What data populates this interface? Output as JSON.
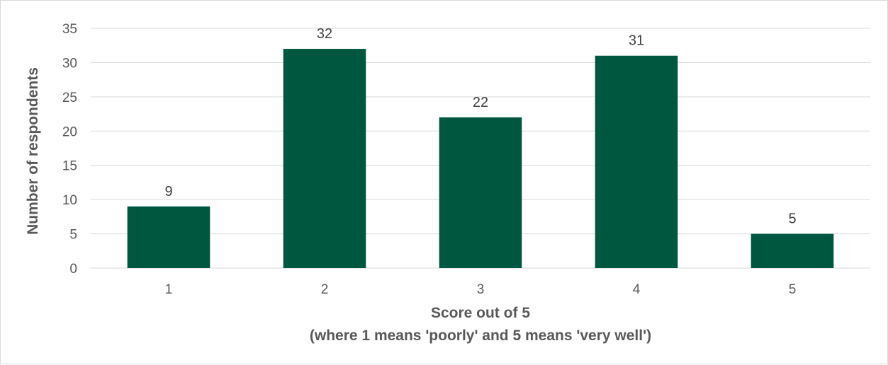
{
  "chart_data": {
    "type": "bar",
    "categories": [
      "1",
      "2",
      "3",
      "4",
      "5"
    ],
    "values": [
      9,
      32,
      22,
      31,
      5
    ],
    "xlabel_lines": [
      "Score out of 5",
      "(where 1 means 'poorly' and 5 means 'very well')"
    ],
    "ylabel": "Number of respondents",
    "ylim": [
      0,
      35
    ],
    "yticks": [
      "0",
      "5",
      "10",
      "15",
      "20",
      "25",
      "30",
      "35"
    ],
    "grid": true,
    "legend": "none",
    "bar_color": "#00573f",
    "gridline_color": "#d9d9d9",
    "text_color": "#595959"
  }
}
